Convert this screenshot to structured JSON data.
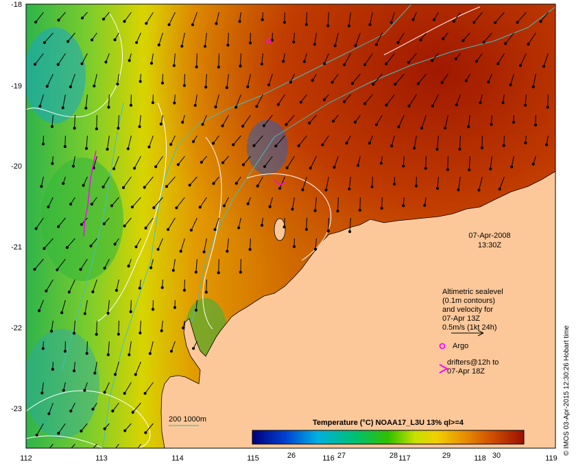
{
  "map": {
    "axes": {
      "lon_ticks": [
        "112",
        "113",
        "114",
        "115",
        "116",
        "117",
        "118",
        "119"
      ],
      "lat_ticks": [
        "-18",
        "-19",
        "-20",
        "-21",
        "-22",
        "-23"
      ]
    },
    "timestamp": {
      "date": "07-Apr-2008",
      "time": "13:30Z"
    },
    "legend": {
      "sealevel_lines": [
        "Altimetric sealevel",
        "(0.1m contours)",
        "and velocity for",
        "07-Apr 13Z",
        "0.5m/s (1kt 24h)"
      ],
      "argo_label": "Argo",
      "drifters_lines": [
        "drifters@12h to",
        "07-Apr 18Z"
      ],
      "isobath_label": "200  1000m"
    },
    "colorbar": {
      "title": "Temperature (°C) NOAA17_L3U 13% ql>=4",
      "ticks": [
        "26",
        "27",
        "28",
        "29",
        "30"
      ]
    },
    "credit": "© IMOS 03-Apr-2015 12:30:26 Hobart time",
    "colors": {
      "land": "#fcc89a",
      "arrow": "#000000",
      "contour": "#ffffff",
      "isobath": "#40c0c0",
      "argo": "#ff00ff",
      "drifter": "#ff00ff"
    }
  }
}
